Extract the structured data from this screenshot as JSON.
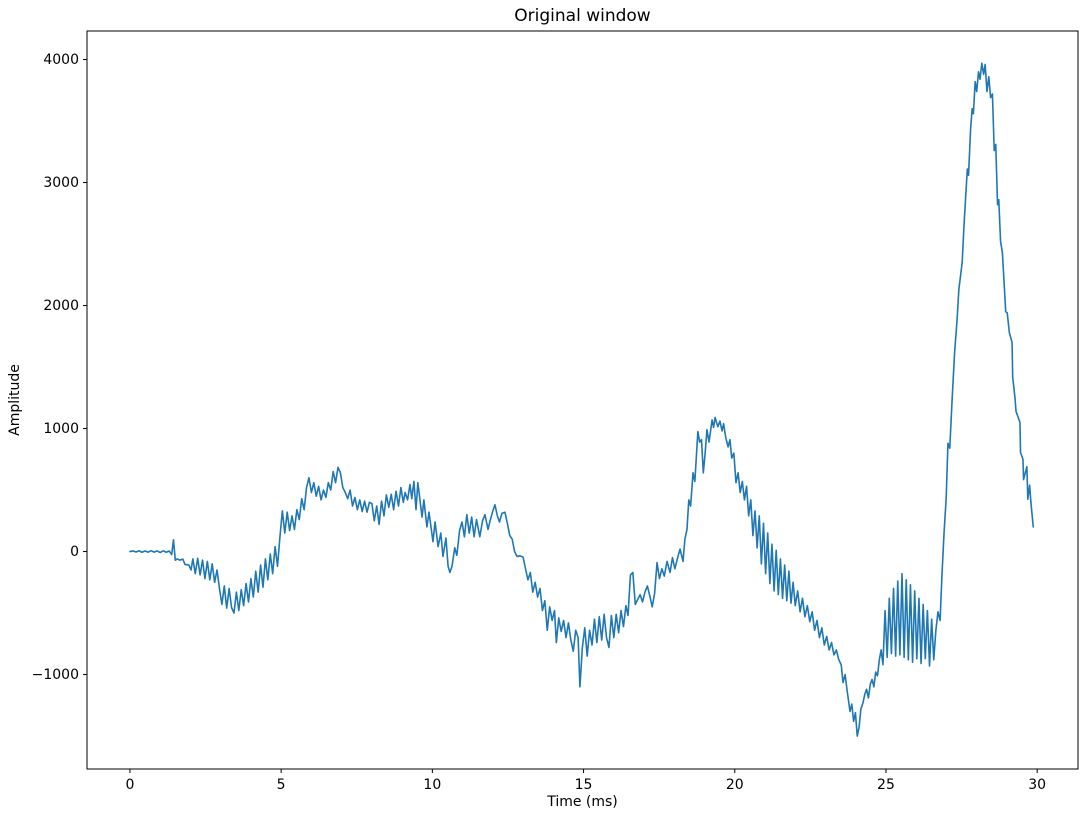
{
  "figure": {
    "title": "Original window",
    "xlabel": "Time (ms)",
    "ylabel": "Amplitude"
  },
  "chart_data": {
    "type": "line",
    "title": "Original window",
    "xlabel": "Time (ms)",
    "ylabel": "Amplitude",
    "grid": false,
    "legend": "none",
    "line_color": "#1f77b4",
    "line_width": 1.6,
    "background_color": "#ffffff",
    "spine_color": "#000000",
    "xlim": [
      -1.42,
      31.35
    ],
    "ylim": [
      -1768,
      4232
    ],
    "xticks": [
      0,
      5,
      10,
      15,
      20,
      25,
      30
    ],
    "yticks": [
      -1000,
      0,
      1000,
      2000,
      3000,
      4000
    ],
    "points": [
      [
        0.0,
        0
      ],
      [
        0.1,
        5
      ],
      [
        0.2,
        -4
      ],
      [
        0.3,
        6
      ],
      [
        0.4,
        -6
      ],
      [
        0.5,
        4
      ],
      [
        0.6,
        -5
      ],
      [
        0.7,
        7
      ],
      [
        0.8,
        -5
      ],
      [
        0.9,
        5
      ],
      [
        1.0,
        -8
      ],
      [
        1.1,
        6
      ],
      [
        1.2,
        -6
      ],
      [
        1.3,
        4
      ],
      [
        1.38,
        -25
      ],
      [
        1.44,
        95
      ],
      [
        1.5,
        -70
      ],
      [
        1.56,
        -60
      ],
      [
        1.65,
        -70
      ],
      [
        1.75,
        -62
      ],
      [
        1.82,
        -105
      ],
      [
        1.95,
        -110
      ],
      [
        2.02,
        -150
      ],
      [
        2.08,
        -60
      ],
      [
        2.16,
        -180
      ],
      [
        2.24,
        -55
      ],
      [
        2.32,
        -190
      ],
      [
        2.4,
        -70
      ],
      [
        2.48,
        -220
      ],
      [
        2.56,
        -80
      ],
      [
        2.64,
        -230
      ],
      [
        2.72,
        -100
      ],
      [
        2.8,
        -250
      ],
      [
        2.88,
        -150
      ],
      [
        2.96,
        -300
      ],
      [
        3.04,
        -430
      ],
      [
        3.12,
        -280
      ],
      [
        3.2,
        -460
      ],
      [
        3.28,
        -300
      ],
      [
        3.36,
        -455
      ],
      [
        3.44,
        -500
      ],
      [
        3.52,
        -330
      ],
      [
        3.6,
        -480
      ],
      [
        3.68,
        -310
      ],
      [
        3.76,
        -440
      ],
      [
        3.84,
        -260
      ],
      [
        3.92,
        -410
      ],
      [
        4.0,
        -220
      ],
      [
        4.08,
        -370
      ],
      [
        4.16,
        -160
      ],
      [
        4.24,
        -330
      ],
      [
        4.32,
        -110
      ],
      [
        4.4,
        -290
      ],
      [
        4.48,
        -60
      ],
      [
        4.56,
        -230
      ],
      [
        4.64,
        -20
      ],
      [
        4.72,
        -180
      ],
      [
        4.8,
        40
      ],
      [
        4.88,
        -120
      ],
      [
        4.96,
        120
      ],
      [
        5.04,
        330
      ],
      [
        5.12,
        150
      ],
      [
        5.2,
        320
      ],
      [
        5.28,
        170
      ],
      [
        5.36,
        290
      ],
      [
        5.44,
        180
      ],
      [
        5.52,
        340
      ],
      [
        5.6,
        260
      ],
      [
        5.68,
        430
      ],
      [
        5.76,
        340
      ],
      [
        5.84,
        520
      ],
      [
        5.92,
        600
      ],
      [
        6.0,
        480
      ],
      [
        6.08,
        560
      ],
      [
        6.16,
        450
      ],
      [
        6.24,
        530
      ],
      [
        6.32,
        420
      ],
      [
        6.4,
        500
      ],
      [
        6.48,
        440
      ],
      [
        6.56,
        560
      ],
      [
        6.64,
        500
      ],
      [
        6.72,
        650
      ],
      [
        6.8,
        560
      ],
      [
        6.88,
        685
      ],
      [
        6.96,
        640
      ],
      [
        7.04,
        520
      ],
      [
        7.12,
        480
      ],
      [
        7.2,
        430
      ],
      [
        7.28,
        500
      ],
      [
        7.36,
        370
      ],
      [
        7.44,
        440
      ],
      [
        7.52,
        340
      ],
      [
        7.6,
        420
      ],
      [
        7.68,
        325
      ],
      [
        7.76,
        410
      ],
      [
        7.84,
        320
      ],
      [
        7.92,
        400
      ],
      [
        8.0,
        390
      ],
      [
        8.08,
        250
      ],
      [
        8.16,
        370
      ],
      [
        8.24,
        220
      ],
      [
        8.32,
        410
      ],
      [
        8.4,
        290
      ],
      [
        8.48,
        460
      ],
      [
        8.56,
        360
      ],
      [
        8.64,
        465
      ],
      [
        8.72,
        340
      ],
      [
        8.8,
        490
      ],
      [
        8.88,
        370
      ],
      [
        8.96,
        520
      ],
      [
        9.04,
        400
      ],
      [
        9.1,
        480
      ],
      [
        9.18,
        420
      ],
      [
        9.26,
        545
      ],
      [
        9.32,
        430
      ],
      [
        9.39,
        570
      ],
      [
        9.46,
        340
      ],
      [
        9.52,
        560
      ],
      [
        9.6,
        400
      ],
      [
        9.66,
        280
      ],
      [
        9.72,
        420
      ],
      [
        9.82,
        200
      ],
      [
        9.89,
        320
      ],
      [
        10.02,
        80
      ],
      [
        10.09,
        240
      ],
      [
        10.19,
        40
      ],
      [
        10.28,
        150
      ],
      [
        10.35,
        -40
      ],
      [
        10.45,
        110
      ],
      [
        10.52,
        -120
      ],
      [
        10.58,
        -170
      ],
      [
        10.65,
        -120
      ],
      [
        10.74,
        30
      ],
      [
        10.81,
        -30
      ],
      [
        10.9,
        170
      ],
      [
        10.98,
        240
      ],
      [
        11.06,
        120
      ],
      [
        11.14,
        300
      ],
      [
        11.22,
        150
      ],
      [
        11.3,
        280
      ],
      [
        11.38,
        120
      ],
      [
        11.46,
        260
      ],
      [
        11.57,
        120
      ],
      [
        11.66,
        250
      ],
      [
        11.74,
        300
      ],
      [
        11.84,
        180
      ],
      [
        11.92,
        260
      ],
      [
        12.0,
        330
      ],
      [
        12.07,
        380
      ],
      [
        12.15,
        290
      ],
      [
        12.22,
        240
      ],
      [
        12.3,
        310
      ],
      [
        12.4,
        320
      ],
      [
        12.48,
        230
      ],
      [
        12.56,
        130
      ],
      [
        12.64,
        100
      ],
      [
        12.72,
        0
      ],
      [
        12.8,
        -40
      ],
      [
        12.9,
        -35
      ],
      [
        13.0,
        -45
      ],
      [
        13.08,
        -140
      ],
      [
        13.16,
        -230
      ],
      [
        13.24,
        -170
      ],
      [
        13.32,
        -330
      ],
      [
        13.4,
        -250
      ],
      [
        13.48,
        -370
      ],
      [
        13.56,
        -300
      ],
      [
        13.64,
        -480
      ],
      [
        13.72,
        -400
      ],
      [
        13.8,
        -640
      ],
      [
        13.88,
        -450
      ],
      [
        13.96,
        -560
      ],
      [
        14.04,
        -480
      ],
      [
        14.1,
        -740
      ],
      [
        14.18,
        -540
      ],
      [
        14.26,
        -650
      ],
      [
        14.34,
        -560
      ],
      [
        14.42,
        -700
      ],
      [
        14.5,
        -580
      ],
      [
        14.58,
        -720
      ],
      [
        14.66,
        -810
      ],
      [
        14.74,
        -640
      ],
      [
        14.82,
        -700
      ],
      [
        14.88,
        -1100
      ],
      [
        14.96,
        -780
      ],
      [
        15.04,
        -620
      ],
      [
        15.12,
        -850
      ],
      [
        15.2,
        -640
      ],
      [
        15.28,
        -760
      ],
      [
        15.36,
        -550
      ],
      [
        15.44,
        -740
      ],
      [
        15.52,
        -530
      ],
      [
        15.6,
        -720
      ],
      [
        15.68,
        -510
      ],
      [
        15.76,
        -700
      ],
      [
        15.84,
        -780
      ],
      [
        15.92,
        -520
      ],
      [
        16.0,
        -700
      ],
      [
        16.08,
        -510
      ],
      [
        16.16,
        -660
      ],
      [
        16.24,
        -480
      ],
      [
        16.32,
        -610
      ],
      [
        16.4,
        -440
      ],
      [
        16.47,
        -520
      ],
      [
        16.55,
        -190
      ],
      [
        16.63,
        -170
      ],
      [
        16.71,
        -430
      ],
      [
        16.79,
        -390
      ],
      [
        16.87,
        -350
      ],
      [
        16.95,
        -410
      ],
      [
        17.03,
        -330
      ],
      [
        17.11,
        -280
      ],
      [
        17.19,
        -360
      ],
      [
        17.27,
        -450
      ],
      [
        17.35,
        -340
      ],
      [
        17.43,
        -90
      ],
      [
        17.51,
        -220
      ],
      [
        17.59,
        -140
      ],
      [
        17.67,
        -200
      ],
      [
        17.76,
        -80
      ],
      [
        17.86,
        -170
      ],
      [
        17.94,
        -50
      ],
      [
        18.02,
        -140
      ],
      [
        18.1,
        -60
      ],
      [
        18.19,
        20
      ],
      [
        18.29,
        -80
      ],
      [
        18.35,
        100
      ],
      [
        18.42,
        180
      ],
      [
        18.48,
        420
      ],
      [
        18.54,
        370
      ],
      [
        18.62,
        640
      ],
      [
        18.68,
        570
      ],
      [
        18.78,
        975
      ],
      [
        18.84,
        890
      ],
      [
        18.9,
        910
      ],
      [
        18.96,
        640
      ],
      [
        19.02,
        800
      ],
      [
        19.08,
        990
      ],
      [
        19.15,
        890
      ],
      [
        19.25,
        1070
      ],
      [
        19.3,
        1010
      ],
      [
        19.35,
        1090
      ],
      [
        19.44,
        1015
      ],
      [
        19.51,
        1060
      ],
      [
        19.58,
        980
      ],
      [
        19.63,
        1040
      ],
      [
        19.7,
        930
      ],
      [
        19.78,
        850
      ],
      [
        19.84,
        910
      ],
      [
        19.9,
        760
      ],
      [
        19.97,
        800
      ],
      [
        20.04,
        560
      ],
      [
        20.11,
        640
      ],
      [
        20.18,
        480
      ],
      [
        20.25,
        570
      ],
      [
        20.32,
        420
      ],
      [
        20.39,
        530
      ],
      [
        20.46,
        290
      ],
      [
        20.53,
        420
      ],
      [
        20.6,
        130
      ],
      [
        20.67,
        330
      ],
      [
        20.74,
        30
      ],
      [
        20.81,
        290
      ],
      [
        20.88,
        -100
      ],
      [
        20.95,
        230
      ],
      [
        21.02,
        -180
      ],
      [
        21.09,
        150
      ],
      [
        21.16,
        -260
      ],
      [
        21.23,
        60
      ],
      [
        21.3,
        -320
      ],
      [
        21.37,
        10
      ],
      [
        21.44,
        -350
      ],
      [
        21.51,
        -60
      ],
      [
        21.58,
        -380
      ],
      [
        21.65,
        -110
      ],
      [
        21.72,
        -400
      ],
      [
        21.79,
        -160
      ],
      [
        21.86,
        -420
      ],
      [
        21.93,
        -250
      ],
      [
        22.0,
        -440
      ],
      [
        22.08,
        -320
      ],
      [
        22.16,
        -490
      ],
      [
        22.24,
        -380
      ],
      [
        22.32,
        -530
      ],
      [
        22.4,
        -440
      ],
      [
        22.48,
        -570
      ],
      [
        22.56,
        -490
      ],
      [
        22.64,
        -640
      ],
      [
        22.72,
        -560
      ],
      [
        22.8,
        -700
      ],
      [
        22.88,
        -620
      ],
      [
        22.96,
        -760
      ],
      [
        23.04,
        -690
      ],
      [
        23.12,
        -800
      ],
      [
        23.2,
        -740
      ],
      [
        23.28,
        -840
      ],
      [
        23.36,
        -800
      ],
      [
        23.44,
        -880
      ],
      [
        23.52,
        -920
      ],
      [
        23.58,
        -1065
      ],
      [
        23.65,
        -1000
      ],
      [
        23.71,
        -1120
      ],
      [
        23.81,
        -1300
      ],
      [
        23.87,
        -1240
      ],
      [
        23.93,
        -1380
      ],
      [
        23.99,
        -1310
      ],
      [
        24.05,
        -1500
      ],
      [
        24.11,
        -1430
      ],
      [
        24.17,
        -1280
      ],
      [
        24.24,
        -1230
      ],
      [
        24.3,
        -1160
      ],
      [
        24.36,
        -1120
      ],
      [
        24.42,
        -1190
      ],
      [
        24.48,
        -1080
      ],
      [
        24.54,
        -1040
      ],
      [
        24.6,
        -1100
      ],
      [
        24.66,
        -980
      ],
      [
        24.72,
        -1010
      ],
      [
        24.78,
        -880
      ],
      [
        24.84,
        -800
      ],
      [
        24.9,
        -920
      ],
      [
        24.97,
        -480
      ],
      [
        25.04,
        -860
      ],
      [
        25.11,
        -380
      ],
      [
        25.18,
        -830
      ],
      [
        25.25,
        -300
      ],
      [
        25.32,
        -850
      ],
      [
        25.39,
        -240
      ],
      [
        25.46,
        -840
      ],
      [
        25.53,
        -180
      ],
      [
        25.6,
        -860
      ],
      [
        25.67,
        -230
      ],
      [
        25.74,
        -880
      ],
      [
        25.81,
        -270
      ],
      [
        25.88,
        -900
      ],
      [
        25.95,
        -320
      ],
      [
        26.02,
        -870
      ],
      [
        26.09,
        -380
      ],
      [
        26.16,
        -910
      ],
      [
        26.23,
        -430
      ],
      [
        26.3,
        -870
      ],
      [
        26.37,
        -480
      ],
      [
        26.44,
        -930
      ],
      [
        26.51,
        -550
      ],
      [
        26.58,
        -880
      ],
      [
        26.65,
        -640
      ],
      [
        26.72,
        -490
      ],
      [
        26.79,
        -560
      ],
      [
        26.85,
        -200
      ],
      [
        26.92,
        150
      ],
      [
        26.99,
        430
      ],
      [
        27.05,
        880
      ],
      [
        27.11,
        840
      ],
      [
        27.19,
        1250
      ],
      [
        27.27,
        1620
      ],
      [
        27.35,
        1880
      ],
      [
        27.41,
        2130
      ],
      [
        27.46,
        2230
      ],
      [
        27.52,
        2350
      ],
      [
        27.58,
        2650
      ],
      [
        27.64,
        2900
      ],
      [
        27.69,
        3110
      ],
      [
        27.73,
        3060
      ],
      [
        27.8,
        3440
      ],
      [
        27.85,
        3600
      ],
      [
        27.89,
        3560
      ],
      [
        27.95,
        3820
      ],
      [
        28.0,
        3740
      ],
      [
        28.06,
        3900
      ],
      [
        28.11,
        3840
      ],
      [
        28.17,
        3970
      ],
      [
        28.23,
        3880
      ],
      [
        28.28,
        3960
      ],
      [
        28.34,
        3740
      ],
      [
        28.4,
        3860
      ],
      [
        28.46,
        3690
      ],
      [
        28.52,
        3720
      ],
      [
        28.58,
        3260
      ],
      [
        28.63,
        3310
      ],
      [
        28.69,
        2820
      ],
      [
        28.73,
        2860
      ],
      [
        28.79,
        2520
      ],
      [
        28.85,
        2430
      ],
      [
        28.9,
        2210
      ],
      [
        28.96,
        1950
      ],
      [
        29.01,
        1940
      ],
      [
        29.08,
        1780
      ],
      [
        29.17,
        1700
      ],
      [
        29.19,
        1420
      ],
      [
        29.27,
        1240
      ],
      [
        29.3,
        1140
      ],
      [
        29.43,
        1050
      ],
      [
        29.45,
        805
      ],
      [
        29.53,
        750
      ],
      [
        29.55,
        585
      ],
      [
        29.66,
        690
      ],
      [
        29.69,
        425
      ],
      [
        29.75,
        540
      ],
      [
        29.8,
        380
      ],
      [
        29.87,
        200
      ]
    ]
  }
}
